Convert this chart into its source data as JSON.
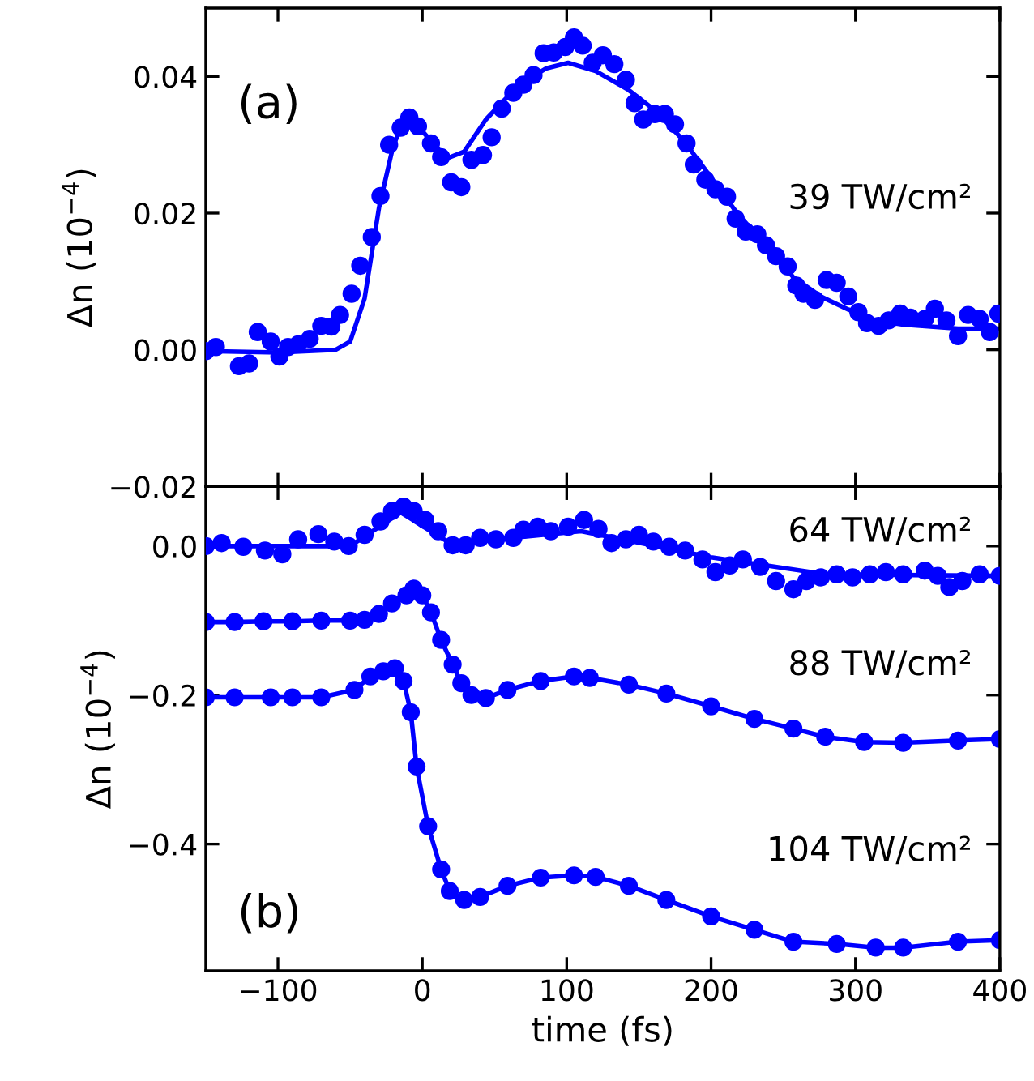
{
  "chart_data": [
    {
      "type": "scatter",
      "ylabel": "Δn (10$^{−4}$)",
      "annotations": [
        "(a)"
      ],
      "xlim": [
        -150,
        400
      ],
      "xticks": [
        {
          "value": -100,
          "label": null
        },
        {
          "value": 0,
          "label": null
        },
        {
          "value": 100,
          "label": null
        },
        {
          "value": 200,
          "label": null
        },
        {
          "value": 300,
          "label": null
        },
        {
          "value": 400,
          "label": null
        }
      ],
      "ylim": [
        -0.02,
        0.05
      ],
      "yticks": [
        {
          "value": -0.02,
          "label": "−0.02"
        },
        {
          "value": 0,
          "label": "0.00"
        },
        0.02,
        0.04
      ],
      "tick_labels": "y",
      "grid": false,
      "legend": false,
      "marker": "circle",
      "series": [
        {
          "name": "39 TW/cm²",
          "type": "scatter",
          "color": "#0000ff",
          "x": [
            -150,
            -143,
            -127,
            -120,
            -114,
            -105,
            -99,
            -93,
            -86,
            -78,
            -70,
            -63,
            -57,
            -49,
            -43,
            -35,
            -29,
            -23,
            -15,
            -9,
            -3,
            6,
            13,
            20,
            27,
            34,
            42,
            48,
            55,
            63,
            70,
            77,
            84,
            91,
            99,
            105,
            111,
            118,
            125,
            133,
            141,
            147,
            153,
            161,
            168,
            175,
            183,
            188,
            196,
            203,
            211,
            217,
            224,
            232,
            238,
            245,
            253,
            259,
            264,
            272,
            280,
            287,
            295,
            302,
            308,
            316,
            323,
            331,
            338,
            348,
            355,
            363,
            371,
            378,
            386,
            393,
            399
          ],
          "values": [
            -0.0002,
            0.0004,
            -0.0024,
            -0.002,
            0.0026,
            0.0012,
            -0.001,
            0.0004,
            0.0008,
            0.0016,
            0.0035,
            0.0034,
            0.0051,
            0.0082,
            0.0123,
            0.0165,
            0.0225,
            0.03,
            0.0325,
            0.034,
            0.0327,
            0.0302,
            0.0282,
            0.0245,
            0.0238,
            0.0278,
            0.0285,
            0.0311,
            0.0353,
            0.0376,
            0.0388,
            0.0402,
            0.0434,
            0.0435,
            0.0443,
            0.0457,
            0.0445,
            0.042,
            0.0431,
            0.0418,
            0.0395,
            0.0361,
            0.0337,
            0.0345,
            0.0345,
            0.033,
            0.0302,
            0.0271,
            0.0249,
            0.0235,
            0.0224,
            0.0192,
            0.0173,
            0.0169,
            0.0153,
            0.0137,
            0.0122,
            0.0094,
            0.0082,
            0.0073,
            0.0102,
            0.0098,
            0.0078,
            0.0055,
            0.0039,
            0.0035,
            0.0043,
            0.0053,
            0.0047,
            0.0045,
            0.006,
            0.0043,
            0.002,
            0.0051,
            0.0045,
            0.0026,
            0.0053
          ]
        },
        {
          "type": "line",
          "color": "#0000ff",
          "marker": "none",
          "x": [
            -150,
            -100,
            -60,
            -50,
            -40,
            -30,
            -20,
            -10,
            0,
            17,
            29,
            44,
            67,
            86,
            101,
            120,
            143,
            162,
            181,
            199,
            218,
            238,
            257,
            276,
            295,
            314,
            333,
            371,
            400
          ],
          "values": [
            -0.0002,
            -0.0004,
            0,
            0.0012,
            0.0075,
            0.0208,
            0.03,
            0.0345,
            0.032,
            0.028,
            0.029,
            0.0337,
            0.0388,
            0.0412,
            0.042,
            0.0408,
            0.038,
            0.0349,
            0.0306,
            0.0255,
            0.02,
            0.0153,
            0.0106,
            0.0078,
            0.0059,
            0.0043,
            0.0037,
            0.0031,
            0.0031
          ]
        }
      ]
    },
    {
      "type": "line",
      "xlabel": "time (fs)",
      "ylabel": "Δn (10$^{−4}$)",
      "annotations": [
        "(b)"
      ],
      "xlim": [
        -150,
        400
      ],
      "xticks": [
        {
          "value": -100,
          "label": "−100"
        },
        0,
        100,
        200,
        300,
        400
      ],
      "ylim": [
        -0.57,
        0.08
      ],
      "yticks": [
        {
          "value": -0.4,
          "label": "−0.4"
        },
        {
          "value": -0.2,
          "label": "−0.2"
        },
        {
          "value": 0,
          "label": "0.0"
        }
      ],
      "grid": false,
      "legend": false,
      "marker": "circle",
      "series": [
        {
          "name": "64 TW/cm²",
          "type": "scatter",
          "color": "#0000ff",
          "x": [
            -150,
            -139,
            -124,
            -109,
            -97,
            -86,
            -72,
            -61,
            -51,
            -40,
            -29,
            -21,
            -13,
            -6,
            2,
            11,
            21,
            30,
            40,
            51,
            63,
            70,
            80,
            89,
            101,
            112,
            122,
            131,
            141,
            150,
            160,
            171,
            182,
            194,
            203,
            213,
            222,
            234,
            245,
            257,
            266,
            276,
            287,
            298,
            310,
            321,
            333,
            348,
            357,
            365,
            374,
            386,
            400
          ],
          "values": [
            0,
            0.004,
            -0.001,
            -0.006,
            -0.011,
            0.009,
            0.016,
            0.006,
            0,
            0.015,
            0.033,
            0.047,
            0.053,
            0.047,
            0.035,
            0.02,
            0.001,
            0.001,
            0.011,
            0.009,
            0.011,
            0.022,
            0.026,
            0.02,
            0.026,
            0.035,
            0.023,
            0.004,
            0.009,
            0.015,
            0.006,
            -0.001,
            -0.006,
            -0.018,
            -0.035,
            -0.026,
            -0.018,
            -0.028,
            -0.047,
            -0.058,
            -0.047,
            -0.042,
            -0.038,
            -0.042,
            -0.038,
            -0.035,
            -0.038,
            -0.033,
            -0.04,
            -0.055,
            -0.047,
            -0.038,
            -0.04
          ]
        },
        {
          "color": "#0000ff",
          "marker": "none",
          "x": [
            -150,
            -50,
            -15,
            20,
            110,
            200,
            280,
            400
          ],
          "values": [
            0,
            0,
            0.045,
            0.003,
            0.02,
            -0.015,
            -0.038,
            -0.04
          ]
        },
        {
          "name": "88 TW/cm²",
          "color": "#0000ff",
          "x": [
            -150,
            -130,
            -110,
            -90,
            -70,
            -50,
            -40,
            -30,
            -21,
            -11,
            -6,
            0,
            6,
            13,
            21,
            27,
            34,
            44,
            59,
            82,
            105,
            116,
            143,
            169,
            200,
            230,
            257,
            279,
            306,
            333,
            371,
            400
          ],
          "values": [
            -0.102,
            -0.102,
            -0.101,
            -0.101,
            -0.1,
            -0.1,
            -0.099,
            -0.091,
            -0.077,
            -0.066,
            -0.057,
            -0.066,
            -0.089,
            -0.126,
            -0.159,
            -0.184,
            -0.2,
            -0.204,
            -0.193,
            -0.181,
            -0.175,
            -0.177,
            -0.186,
            -0.198,
            -0.215,
            -0.232,
            -0.245,
            -0.256,
            -0.263,
            -0.264,
            -0.261,
            -0.259
          ]
        },
        {
          "name": "104 TW/cm²",
          "color": "#0000ff",
          "x": [
            -150,
            -130,
            -105,
            -90,
            -70,
            -47,
            -36,
            -27,
            -19,
            -13,
            -8,
            -4,
            4,
            13,
            19,
            29,
            40,
            59,
            82,
            105,
            120,
            143,
            169,
            200,
            230,
            257,
            287,
            314,
            333,
            371,
            400
          ],
          "values": [
            -0.203,
            -0.203,
            -0.203,
            -0.203,
            -0.203,
            -0.193,
            -0.175,
            -0.168,
            -0.164,
            -0.181,
            -0.223,
            -0.296,
            -0.376,
            -0.434,
            -0.463,
            -0.475,
            -0.471,
            -0.456,
            -0.445,
            -0.442,
            -0.444,
            -0.456,
            -0.475,
            -0.497,
            -0.515,
            -0.531,
            -0.534,
            -0.539,
            -0.539,
            -0.531,
            -0.529
          ]
        }
      ]
    }
  ]
}
